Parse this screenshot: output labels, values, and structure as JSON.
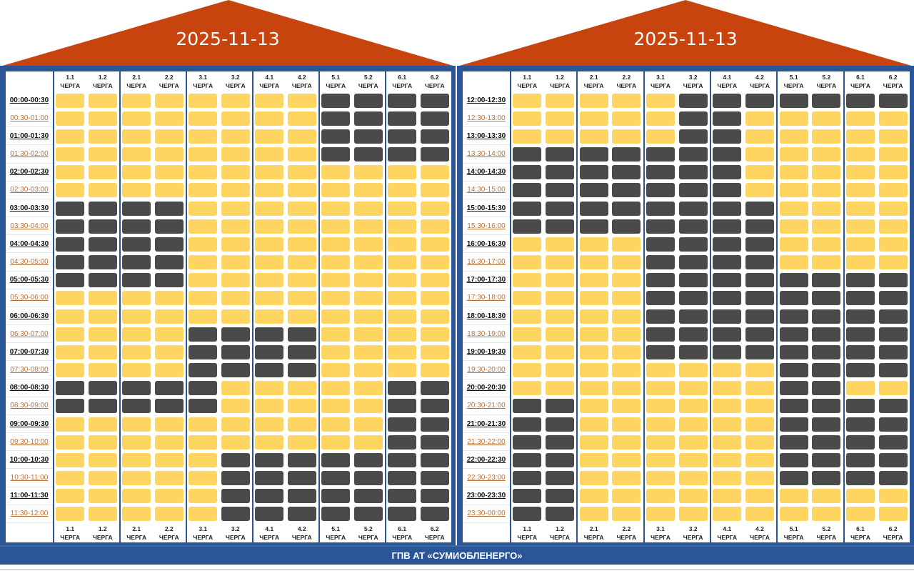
{
  "colors": {
    "roof": "#c8440f",
    "frame": "#2a5597",
    "power_on": "#ffd561",
    "power_off": "#4a4a4a",
    "odd_time_label": "#b8703a"
  },
  "queues": [
    {
      "num": "1.1",
      "label": "ЧЕРГА"
    },
    {
      "num": "1.2",
      "label": "ЧЕРГА"
    },
    {
      "num": "2.1",
      "label": "ЧЕРГА"
    },
    {
      "num": "2.2",
      "label": "ЧЕРГА"
    },
    {
      "num": "3.1",
      "label": "ЧЕРГА"
    },
    {
      "num": "3.2",
      "label": "ЧЕРГА"
    },
    {
      "num": "4.1",
      "label": "ЧЕРГА"
    },
    {
      "num": "4.2",
      "label": "ЧЕРГА"
    },
    {
      "num": "5.1",
      "label": "ЧЕРГА"
    },
    {
      "num": "5.2",
      "label": "ЧЕРГА"
    },
    {
      "num": "6.1",
      "label": "ЧЕРГА"
    },
    {
      "num": "6.2",
      "label": "ЧЕРГА"
    }
  ],
  "legend_note": "1 = outage (dark), 0 = power on (yellow)",
  "panels": [
    {
      "date": "2025-11-13",
      "rows": [
        {
          "time": "00:00-00:30",
          "status": "000000001111"
        },
        {
          "time": "00:30-01:00",
          "status": "000000001111"
        },
        {
          "time": "01:00-01:30",
          "status": "000000001111"
        },
        {
          "time": "01:30-02:00",
          "status": "000000001111"
        },
        {
          "time": "02:00-02:30",
          "status": "000000000000"
        },
        {
          "time": "02:30-03:00",
          "status": "000000000000"
        },
        {
          "time": "03:00-03:30",
          "status": "111100000000"
        },
        {
          "time": "03:30-04:00",
          "status": "111100000000"
        },
        {
          "time": "04:00-04:30",
          "status": "111100000000"
        },
        {
          "time": "04:30-05:00",
          "status": "111100000000"
        },
        {
          "time": "05:00-05:30",
          "status": "111100000000"
        },
        {
          "time": "05:30-06:00",
          "status": "000000000000"
        },
        {
          "time": "06:00-06:30",
          "status": "000000000000"
        },
        {
          "time": "06:30-07:00",
          "status": "000011110000"
        },
        {
          "time": "07:00-07:30",
          "status": "000011110000"
        },
        {
          "time": "07:30-08:00",
          "status": "000011110000"
        },
        {
          "time": "08:00-08:30",
          "status": "111110000011"
        },
        {
          "time": "08:30-09:00",
          "status": "111110000011"
        },
        {
          "time": "09:00-09:30",
          "status": "000000000011"
        },
        {
          "time": "09:30-10:00",
          "status": "000000000011"
        },
        {
          "time": "10:00-10:30",
          "status": "000001111111"
        },
        {
          "time": "10:30-11:00",
          "status": "000001111111"
        },
        {
          "time": "11:00-11:30",
          "status": "000001111111"
        },
        {
          "time": "11:30-12:00",
          "status": "000001111111"
        }
      ]
    },
    {
      "date": "2025-11-13",
      "rows": [
        {
          "time": "12:00-12:30",
          "status": "000001111111"
        },
        {
          "time": "12:30-13:00",
          "status": "000001100000"
        },
        {
          "time": "13:00-13:30",
          "status": "000001100000"
        },
        {
          "time": "13:30-14:00",
          "status": "111111100000"
        },
        {
          "time": "14:00-14:30",
          "status": "111111100000"
        },
        {
          "time": "14:30-15:00",
          "status": "111111100000"
        },
        {
          "time": "15:00-15:30",
          "status": "111111110000"
        },
        {
          "time": "15:30-16:00",
          "status": "111111110000"
        },
        {
          "time": "16:00-16:30",
          "status": "000011110000"
        },
        {
          "time": "16:30-17:00",
          "status": "000011110000"
        },
        {
          "time": "17:00-17:30",
          "status": "000011111111"
        },
        {
          "time": "17:30-18:00",
          "status": "000011111111"
        },
        {
          "time": "18:00-18:30",
          "status": "000011111111"
        },
        {
          "time": "18:30-19:00",
          "status": "000011111111"
        },
        {
          "time": "19:00-19:30",
          "status": "000011111111"
        },
        {
          "time": "19:30-20:00",
          "status": "000000001111"
        },
        {
          "time": "20:00-20:30",
          "status": "000000001100"
        },
        {
          "time": "20:30-21:00",
          "status": "110000001111"
        },
        {
          "time": "21:00-21:30",
          "status": "110000001111"
        },
        {
          "time": "21:30-22:00",
          "status": "110000001111"
        },
        {
          "time": "22:00-22:30",
          "status": "110000001111"
        },
        {
          "time": "22:30-23:00",
          "status": "110000001111"
        },
        {
          "time": "23:00-23:30",
          "status": "110000000000"
        },
        {
          "time": "23:30-00:00",
          "status": "110000000000"
        }
      ]
    }
  ],
  "footer": {
    "text": "ГПВ АТ «СУМИОБЛЕНЕРГО»"
  }
}
